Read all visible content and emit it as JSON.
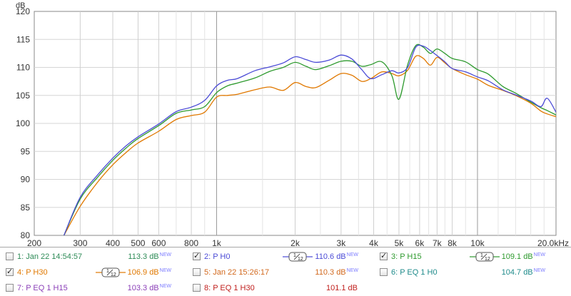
{
  "chart_data": {
    "type": "line",
    "title": "",
    "xlabel": "",
    "ylabel": "dB",
    "x_scale": "log",
    "xlim": [
      200,
      20000
    ],
    "ylim": [
      80,
      120
    ],
    "grid": true,
    "x_ticks": [
      {
        "value": 200,
        "label": "200"
      },
      {
        "value": 300,
        "label": "300"
      },
      {
        "value": 400,
        "label": "400"
      },
      {
        "value": 500,
        "label": "500"
      },
      {
        "value": 600,
        "label": "600"
      },
      {
        "value": 800,
        "label": "800"
      },
      {
        "value": 1000,
        "label": "1k"
      },
      {
        "value": 2000,
        "label": "2k"
      },
      {
        "value": 3000,
        "label": "3k"
      },
      {
        "value": 4000,
        "label": "4k"
      },
      {
        "value": 5000,
        "label": "5k"
      },
      {
        "value": 6000,
        "label": "6k"
      },
      {
        "value": 7000,
        "label": "7k"
      },
      {
        "value": 8000,
        "label": "8k"
      },
      {
        "value": 10000,
        "label": "10k"
      },
      {
        "value": 20000,
        "label": "20.0kHz"
      }
    ],
    "y_ticks": [
      80,
      85,
      90,
      95,
      100,
      105,
      110,
      115,
      120
    ],
    "x_minor": [
      700,
      900,
      1500,
      2500,
      3500,
      4500,
      5500,
      6500,
      7500,
      9000,
      12000,
      14000,
      16000,
      18000
    ],
    "x": [
      260,
      300,
      350,
      400,
      450,
      500,
      600,
      700,
      800,
      900,
      1000,
      1100,
      1200,
      1400,
      1600,
      1800,
      2000,
      2200,
      2400,
      2700,
      3000,
      3300,
      3600,
      3900,
      4300,
      4700,
      5000,
      5400,
      5800,
      6200,
      6600,
      7000,
      7500,
      8000,
      9000,
      10000,
      11000,
      12500,
      14000,
      16000,
      17500,
      18500,
      20000
    ],
    "series": [
      {
        "name": "P H0",
        "color": "#4b4bd6",
        "values": [
          80,
          86.8,
          90.8,
          93.8,
          96.0,
          97.6,
          99.9,
          102.1,
          102.9,
          104.1,
          106.7,
          107.7,
          108.0,
          109.4,
          110.1,
          110.8,
          111.9,
          111.4,
          110.9,
          111.3,
          112.2,
          111.5,
          109.6,
          108.0,
          108.7,
          109.4,
          109.0,
          110.0,
          113.6,
          113.8,
          113.0,
          112.1,
          111.0,
          109.8,
          109.2,
          108.3,
          107.6,
          106.0,
          105.1,
          104.0,
          103.0,
          104.5,
          102.0
        ]
      },
      {
        "name": "P H15",
        "color": "#2e9a2e",
        "values": [
          80,
          86.5,
          90.4,
          93.4,
          95.6,
          97.3,
          99.6,
          101.8,
          102.4,
          103.0,
          105.5,
          106.7,
          107.2,
          108.1,
          109.3,
          110.0,
          110.9,
          110.2,
          109.6,
          110.3,
          111.1,
          111.1,
          110.2,
          110.5,
          111.0,
          108.5,
          104.3,
          110.5,
          113.9,
          113.6,
          112.5,
          113.3,
          112.5,
          111.6,
          111.0,
          109.6,
          108.8,
          106.6,
          105.4,
          103.8,
          102.8,
          102.3,
          101.5
        ]
      },
      {
        "name": "P H30",
        "color": "#e07800",
        "values": [
          80,
          85.2,
          89.5,
          92.6,
          94.8,
          96.5,
          98.6,
          100.7,
          101.4,
          102.0,
          104.7,
          105.0,
          105.2,
          106.0,
          106.5,
          105.9,
          107.3,
          106.6,
          106.4,
          107.7,
          108.9,
          108.6,
          107.5,
          108.0,
          109.2,
          108.9,
          108.5,
          109.5,
          112.0,
          111.6,
          110.4,
          111.8,
          110.8,
          109.8,
          108.7,
          107.9,
          106.8,
          105.9,
          105.0,
          103.6,
          102.2,
          101.7,
          101.2
        ]
      }
    ]
  },
  "legend": [
    {
      "id": "1",
      "label": "1: Jan 22 14:54:57",
      "color": "#2e8b57",
      "checked": false,
      "value": "113.3 dB",
      "new": "NEW",
      "smoothing": ""
    },
    {
      "id": "2",
      "label": "2: P H0",
      "color": "#4b4bd6",
      "checked": true,
      "value": "110.6 dB",
      "new": "NEW",
      "smoothing": "1/12"
    },
    {
      "id": "3",
      "label": "3: P H15",
      "color": "#2e9a2e",
      "checked": true,
      "value": "109.1 dB",
      "new": "NEW",
      "smoothing": "1/12"
    },
    {
      "id": "4",
      "label": "4: P H30",
      "color": "#e07800",
      "checked": true,
      "value": "106.9 dB",
      "new": "NEW",
      "smoothing": "1/12"
    },
    {
      "id": "5",
      "label": "5: Jan 22 15:26:17",
      "color": "#d2691e",
      "checked": false,
      "value": "110.3 dB",
      "new": "NEW",
      "smoothing": ""
    },
    {
      "id": "6",
      "label": "6: P EQ 1 H0",
      "color": "#1f8b8b",
      "checked": false,
      "value": "104.7 dB",
      "new": "NEW",
      "smoothing": ""
    },
    {
      "id": "7",
      "label": "7: P EQ 1 H15",
      "color": "#8b3fb8",
      "checked": false,
      "value": "103.3 dB",
      "new": "NEW",
      "smoothing": ""
    },
    {
      "id": "8",
      "label": "8: P EQ 1 H30",
      "color": "#c0201e",
      "checked": false,
      "value": "101.1 dB",
      "new": "",
      "smoothing": ""
    }
  ]
}
